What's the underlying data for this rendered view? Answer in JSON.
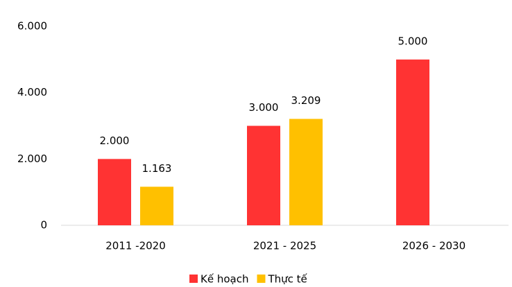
{
  "chart_data": {
    "type": "bar",
    "categories": [
      "2011 -2020",
      "2021 - 2025",
      "2026 - 2030"
    ],
    "series": [
      {
        "name": "Kế hoạch",
        "color": "#ff3333",
        "values": [
          2000,
          3000,
          5000
        ],
        "value_labels": [
          "2.000",
          "3.000",
          "5.000"
        ]
      },
      {
        "name": "Thực tế",
        "color": "#ffc000",
        "values": [
          1163,
          3209,
          null
        ],
        "value_labels": [
          "1.163",
          "3.209",
          null
        ]
      }
    ],
    "ylim": [
      0,
      6000
    ],
    "yticks": [
      0,
      {
        "value": 2000,
        "label": "2.000"
      },
      {
        "value": 4000,
        "label": "4.000"
      },
      {
        "value": 6000,
        "label": "6.000"
      }
    ],
    "grid": false,
    "legend": "bottom"
  }
}
